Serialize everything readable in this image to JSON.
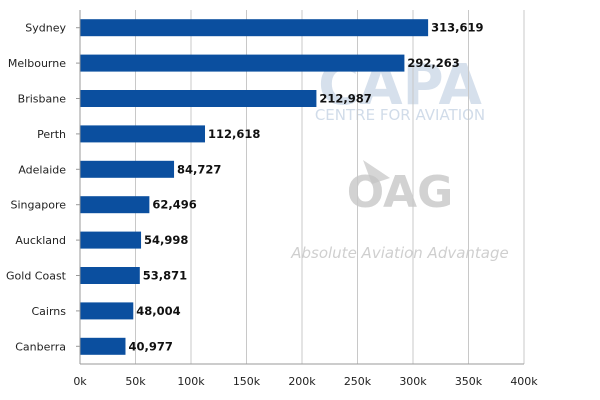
{
  "chart_data": {
    "type": "bar",
    "orientation": "horizontal",
    "categories": [
      "Sydney",
      "Melbourne",
      "Brisbane",
      "Perth",
      "Adelaide",
      "Singapore",
      "Auckland",
      "Gold Coast",
      "Cairns",
      "Canberra"
    ],
    "values": [
      313619,
      292263,
      212987,
      112618,
      84727,
      62496,
      54998,
      53871,
      48004,
      40977
    ],
    "value_labels": [
      "313,619",
      "292,263",
      "212,987",
      "112,618",
      "84,727",
      "62,496",
      "54,998",
      "53,871",
      "48,004",
      "40,977"
    ],
    "xlim": [
      0,
      400000
    ],
    "x_ticks": [
      0,
      50000,
      100000,
      150000,
      200000,
      250000,
      300000,
      350000,
      400000
    ],
    "x_tick_labels": [
      "0k",
      "50k",
      "100k",
      "150k",
      "200k",
      "250k",
      "300k",
      "350k",
      "400k"
    ],
    "grid": "vertical",
    "bar_color": "#0b4f9f",
    "title": "",
    "xlabel": "",
    "ylabel": ""
  },
  "watermark": {
    "capa_logo_text": "CAPA",
    "capa_subtitle": "CENTRE FOR AVIATION",
    "oag_logo_text": "OAG",
    "oag_tagline": "Absolute Aviation Advantage",
    "color": "#c9d6e6",
    "oag_color": "#c4c4c4"
  }
}
